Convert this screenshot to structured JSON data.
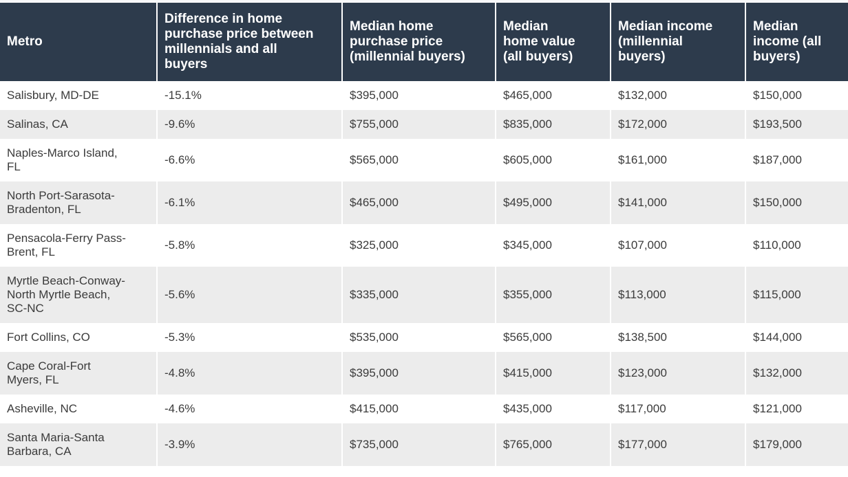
{
  "colors": {
    "header_bg": "#2d3b4c",
    "header_text": "#ffffff",
    "row_bg": "#ffffff",
    "row_alt_bg": "#ececec",
    "body_text": "#3b3b3b",
    "column_divider": "#ffffff",
    "top_strip": "#f7f8f9"
  },
  "table": {
    "header": [
      "Metro",
      "Difference in home\npurchase price between\nmillennials and all\nbuyers",
      "Median home\npurchase price\n(millennial buyers)",
      "Median\nhome value\n(all buyers)",
      "Median income\n(millennial\nbuyers)",
      "Median\nincome (all\nbuyers)"
    ],
    "rows": [
      [
        "Salisbury, MD-DE",
        "-15.1%",
        "$395,000",
        "$465,000",
        "$132,000",
        "$150,000"
      ],
      [
        "Salinas, CA",
        "-9.6%",
        "$755,000",
        "$835,000",
        "$172,000",
        "$193,500"
      ],
      [
        "Naples-Marco Island,\nFL",
        "-6.6%",
        "$565,000",
        "$605,000",
        "$161,000",
        "$187,000"
      ],
      [
        "North Port-Sarasota-\nBradenton, FL",
        "-6.1%",
        "$465,000",
        "$495,000",
        "$141,000",
        "$150,000"
      ],
      [
        "Pensacola-Ferry Pass-\nBrent, FL",
        "-5.8%",
        "$325,000",
        "$345,000",
        "$107,000",
        "$110,000"
      ],
      [
        "Myrtle Beach-Conway-\nNorth Myrtle Beach,\nSC-NC",
        "-5.6%",
        "$335,000",
        "$355,000",
        "$113,000",
        "$115,000"
      ],
      [
        "Fort Collins, CO",
        "-5.3%",
        "$535,000",
        "$565,000",
        "$138,500",
        "$144,000"
      ],
      [
        "Cape Coral-Fort\nMyers, FL",
        "-4.8%",
        "$395,000",
        "$415,000",
        "$123,000",
        "$132,000"
      ],
      [
        "Asheville, NC",
        "-4.6%",
        "$415,000",
        "$435,000",
        "$117,000",
        "$121,000"
      ],
      [
        "Santa Maria-Santa\nBarbara, CA",
        "-3.9%",
        "$735,000",
        "$765,000",
        "$177,000",
        "$179,000"
      ]
    ]
  },
  "chart_data": {
    "type": "table",
    "columns": [
      "Metro",
      "Difference in home purchase price between millennials and all buyers",
      "Median home purchase price (millennial buyers)",
      "Median home value (all buyers)",
      "Median income (millennial buyers)",
      "Median income (all buyers)"
    ],
    "metros": [
      "Salisbury, MD-DE",
      "Salinas, CA",
      "Naples-Marco Island, FL",
      "North Port-Sarasota-Bradenton, FL",
      "Pensacola-Ferry Pass-Brent, FL",
      "Myrtle Beach-Conway-North Myrtle Beach, SC-NC",
      "Fort Collins, CO",
      "Cape Coral-Fort Myers, FL",
      "Asheville, NC",
      "Santa Maria-Santa Barbara, CA"
    ],
    "series": [
      {
        "name": "Difference in home purchase price between millennials and all buyers (%)",
        "values": [
          -15.1,
          -9.6,
          -6.6,
          -6.1,
          -5.8,
          -5.6,
          -5.3,
          -4.8,
          -4.6,
          -3.9
        ]
      },
      {
        "name": "Median home purchase price (millennial buyers), USD",
        "values": [
          395000,
          755000,
          565000,
          465000,
          325000,
          335000,
          535000,
          395000,
          415000,
          735000
        ]
      },
      {
        "name": "Median home value (all buyers), USD",
        "values": [
          465000,
          835000,
          605000,
          495000,
          345000,
          355000,
          565000,
          415000,
          435000,
          765000
        ]
      },
      {
        "name": "Median income (millennial buyers), USD",
        "values": [
          132000,
          172000,
          161000,
          141000,
          107000,
          113000,
          138500,
          123000,
          117000,
          177000
        ]
      },
      {
        "name": "Median income (all buyers), USD",
        "values": [
          150000,
          193500,
          187000,
          150000,
          110000,
          115000,
          144000,
          132000,
          121000,
          179000
        ]
      }
    ]
  }
}
